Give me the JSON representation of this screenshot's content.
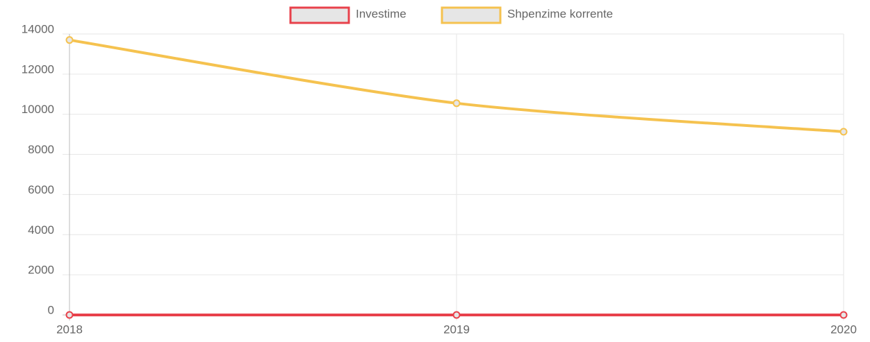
{
  "chart_data": {
    "type": "line",
    "categories": [
      "2018",
      "2019",
      "2020"
    ],
    "series": [
      {
        "name": "Investime",
        "color": "#e8414b",
        "values": [
          0,
          0,
          0
        ]
      },
      {
        "name": "Shpenzime korrente",
        "color": "#f5c24f",
        "values": [
          13700,
          10550,
          9130
        ]
      }
    ],
    "ylim": [
      0,
      14000
    ],
    "yticks": [
      0,
      2000,
      4000,
      6000,
      8000,
      10000,
      12000,
      14000
    ],
    "grid": true,
    "legend": "top"
  }
}
